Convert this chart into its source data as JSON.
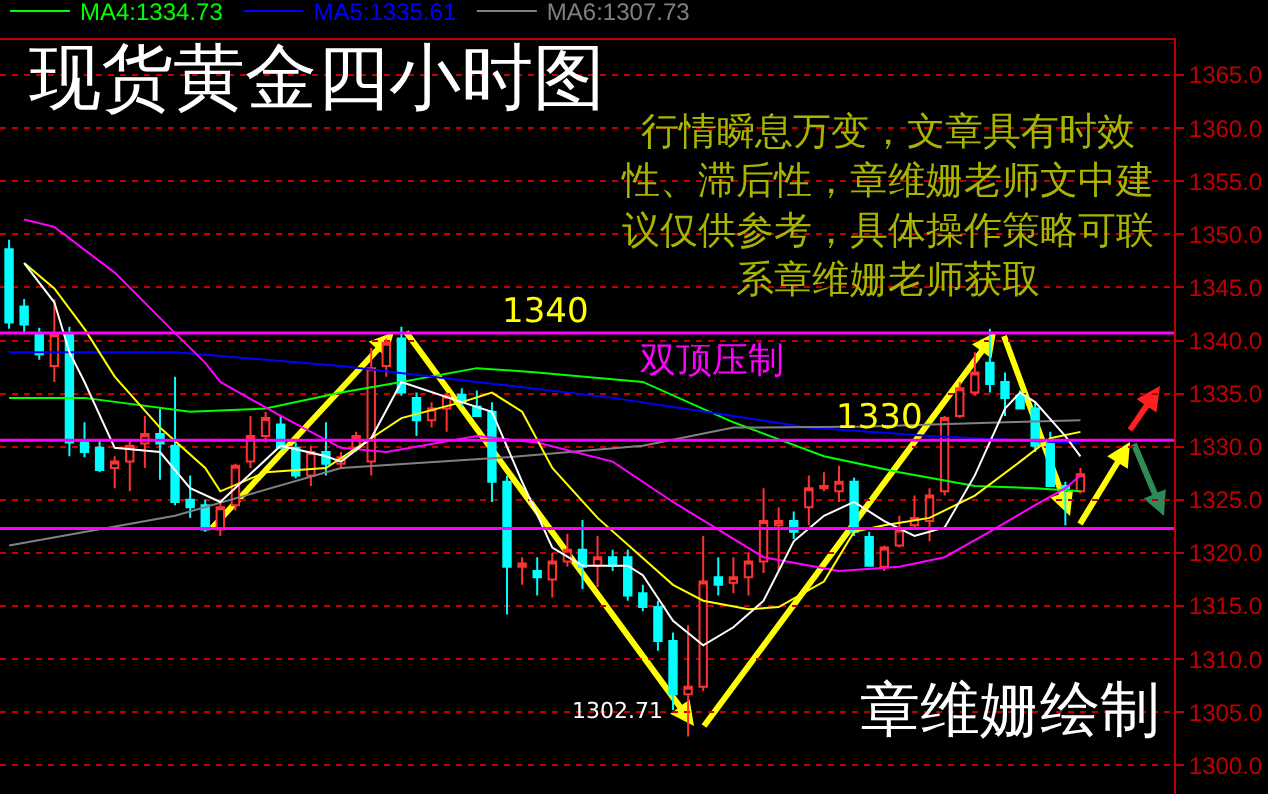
{
  "chart_data": {
    "type": "candlestick",
    "title": "现货黄金四小时图",
    "categories": [
      null,
      null,
      null,
      null,
      null,
      null,
      null,
      null,
      null,
      null,
      null,
      null,
      null,
      null,
      null,
      null,
      null,
      null,
      null,
      null,
      null,
      null,
      null,
      null,
      null,
      null,
      null,
      null,
      null,
      null,
      null,
      null,
      null,
      null,
      null,
      null,
      null,
      null,
      null,
      null,
      null,
      null,
      null,
      null,
      null,
      null,
      null,
      null,
      null,
      null,
      null,
      null,
      null,
      null,
      null,
      null,
      null,
      null,
      null,
      null,
      null,
      null,
      null,
      null,
      null,
      null,
      null,
      null,
      null,
      null,
      null,
      null
    ],
    "ohlc": [
      [
        1348.6,
        1349.5,
        1341.1,
        1341.7
      ],
      [
        1343.2,
        1343.9,
        1340.6,
        1341.5
      ],
      [
        1340.6,
        1341.2,
        1338.2,
        1338.7
      ],
      [
        1337.6,
        1343.9,
        1336.1,
        1340.6
      ],
      [
        1340.7,
        1341.3,
        1329.1,
        1330.4
      ],
      [
        1330.4,
        1332.3,
        1329.0,
        1329.5
      ],
      [
        1329.9,
        1330.6,
        1327.6,
        1327.8
      ],
      [
        1328.0,
        1329.1,
        1326.1,
        1328.6
      ],
      [
        1328.6,
        1330.6,
        1325.8,
        1330.1
      ],
      [
        1330.3,
        1332.9,
        1328.0,
        1331.2
      ],
      [
        1331.2,
        1333.6,
        1326.9,
        1330.3
      ],
      [
        1330.1,
        1336.6,
        1324.5,
        1324.8
      ],
      [
        1325.0,
        1327.3,
        1323.3,
        1324.3
      ],
      [
        1324.5,
        1325.0,
        1322.0,
        1322.2
      ],
      [
        1322.2,
        1324.8,
        1321.6,
        1324.3
      ],
      [
        1324.5,
        1328.4,
        1324.0,
        1328.2
      ],
      [
        1328.6,
        1332.9,
        1328.0,
        1331.0
      ],
      [
        1331.0,
        1333.3,
        1330.4,
        1332.7
      ],
      [
        1332.1,
        1332.9,
        1329.9,
        1329.9
      ],
      [
        1329.9,
        1330.4,
        1327.0,
        1327.3
      ],
      [
        1327.3,
        1330.1,
        1326.3,
        1329.5
      ],
      [
        1329.5,
        1332.3,
        1327.3,
        1328.4
      ],
      [
        1328.4,
        1329.5,
        1328.0,
        1329.0
      ],
      [
        1329.9,
        1331.4,
        1329.5,
        1331.0
      ],
      [
        1328.6,
        1339.3,
        1327.3,
        1337.4
      ],
      [
        1337.6,
        1340.2,
        1336.6,
        1339.8
      ],
      [
        1340.2,
        1341.3,
        1334.8,
        1335.1
      ],
      [
        1334.6,
        1335.1,
        1331.0,
        1332.5
      ],
      [
        1332.5,
        1334.2,
        1331.8,
        1333.6
      ],
      [
        1333.6,
        1335.1,
        1331.4,
        1334.8
      ],
      [
        1334.9,
        1335.5,
        1333.8,
        1334.2
      ],
      [
        1333.8,
        1335.3,
        1332.9,
        1332.9
      ],
      [
        1333.3,
        1334.2,
        1324.8,
        1326.7
      ],
      [
        1326.7,
        1327.3,
        1314.2,
        1318.7
      ],
      [
        1318.7,
        1319.6,
        1317.0,
        1319.0
      ],
      [
        1318.3,
        1319.6,
        1316.0,
        1317.7
      ],
      [
        1317.5,
        1320.0,
        1315.8,
        1319.2
      ],
      [
        1319.2,
        1321.8,
        1318.7,
        1320.3
      ],
      [
        1320.3,
        1323.1,
        1316.6,
        1318.7
      ],
      [
        1318.8,
        1321.6,
        1316.8,
        1319.6
      ],
      [
        1319.6,
        1320.3,
        1318.3,
        1318.8
      ],
      [
        1319.6,
        1320.3,
        1315.5,
        1316.0
      ],
      [
        1316.2,
        1317.0,
        1314.5,
        1314.9
      ],
      [
        1314.9,
        1315.5,
        1310.8,
        1311.7
      ],
      [
        1311.7,
        1312.5,
        1305.2,
        1306.7
      ],
      [
        1306.7,
        1313.2,
        1302.71,
        1307.4
      ],
      [
        1307.4,
        1321.6,
        1307.0,
        1317.3
      ],
      [
        1317.7,
        1319.6,
        1316.0,
        1317.0
      ],
      [
        1317.2,
        1319.6,
        1316.2,
        1317.7
      ],
      [
        1317.7,
        1320.0,
        1316.0,
        1319.2
      ],
      [
        1319.2,
        1326.1,
        1318.1,
        1323.0
      ],
      [
        1322.6,
        1324.3,
        1318.3,
        1323.0
      ],
      [
        1323.0,
        1323.9,
        1321.3,
        1322.0
      ],
      [
        1324.3,
        1327.3,
        1322.6,
        1326.1
      ],
      [
        1326.1,
        1327.6,
        1325.8,
        1326.3
      ],
      [
        1325.8,
        1328.2,
        1324.8,
        1326.7
      ],
      [
        1326.7,
        1327.1,
        1321.6,
        1322.0
      ],
      [
        1321.5,
        1322.0,
        1318.8,
        1318.8
      ],
      [
        1318.7,
        1320.7,
        1318.3,
        1320.5
      ],
      [
        1320.7,
        1323.5,
        1320.5,
        1322.2
      ],
      [
        1322.6,
        1325.4,
        1322.4,
        1323.3
      ],
      [
        1323.0,
        1326.1,
        1321.1,
        1325.4
      ],
      [
        1325.8,
        1332.9,
        1325.4,
        1332.7
      ],
      [
        1332.9,
        1336.1,
        1332.7,
        1335.5
      ],
      [
        1335.1,
        1338.9,
        1334.8,
        1337.0
      ],
      [
        1337.9,
        1341.1,
        1335.1,
        1335.9
      ],
      [
        1336.1,
        1337.0,
        1332.9,
        1334.6
      ],
      [
        1334.8,
        1335.3,
        1333.6,
        1333.6
      ],
      [
        1333.6,
        1334.2,
        1329.5,
        1330.1
      ],
      [
        1330.4,
        1331.4,
        1326.3,
        1326.3
      ],
      [
        1326.3,
        1326.7,
        1322.6,
        1326.1
      ],
      [
        1325.8,
        1328.0,
        1325.6,
        1327.4
      ]
    ],
    "series": [
      {
        "type": "line",
        "color": "#00ff00",
        "name": "MA4:1334.73",
        "values": [
          1334.6,
          null,
          null,
          null,
          null,
          1334.6,
          null,
          null,
          null,
          null,
          null,
          null,
          1333.3,
          null,
          null,
          null,
          null,
          1333.6,
          null,
          null,
          null,
          null,
          1335.1,
          null,
          null,
          null,
          1336.1,
          null,
          null,
          null,
          null,
          1337.4,
          null,
          null,
          null,
          1337.0,
          null,
          null,
          null,
          null,
          null,
          null,
          1336.1,
          null,
          null,
          null,
          null,
          null,
          1332.3,
          null,
          null,
          null,
          null,
          null,
          1329.1,
          null,
          null,
          null,
          null,
          1327.6,
          null,
          null,
          null,
          null,
          1326.3,
          null,
          null,
          null,
          1326.1,
          null,
          null,
          1325.8
        ]
      },
      {
        "type": "line",
        "color": "#0000ff",
        "name": "MA5:1335.61",
        "values": [
          1338.9,
          null,
          null,
          null,
          null,
          null,
          null,
          null,
          null,
          null,
          null,
          1338.9,
          null,
          null,
          null,
          null,
          null,
          null,
          null,
          null,
          null,
          null,
          1337.6,
          null,
          null,
          null,
          null,
          null,
          null,
          null,
          null,
          1336.1,
          null,
          null,
          null,
          null,
          null,
          null,
          null,
          null,
          1334.6,
          null,
          null,
          null,
          null,
          null,
          null,
          null,
          1332.9,
          null,
          null,
          null,
          null,
          1331.8,
          null,
          null,
          null,
          null,
          null,
          null,
          null,
          1331.0,
          null,
          null,
          null,
          null,
          null,
          null,
          null,
          null,
          1330.4,
          1330.3
        ]
      },
      {
        "type": "line",
        "color": "#808080",
        "name": "MA6:1307.73",
        "values": [
          1320.7,
          null,
          null,
          null,
          null,
          null,
          null,
          null,
          null,
          null,
          null,
          1323.5,
          null,
          null,
          null,
          null,
          null,
          null,
          null,
          null,
          null,
          null,
          1328.0,
          null,
          null,
          null,
          null,
          null,
          null,
          null,
          null,
          null,
          null,
          1329.0,
          null,
          null,
          null,
          null,
          null,
          null,
          null,
          null,
          1330.1,
          null,
          null,
          null,
          null,
          null,
          1331.8,
          null,
          null,
          null,
          null,
          null,
          null,
          null,
          null,
          1331.9,
          null,
          null,
          null,
          null,
          null,
          null,
          null,
          null,
          1332.3,
          null,
          null,
          null,
          null,
          1332.5
        ]
      },
      {
        "type": "line",
        "color": "#ff00ff",
        "values": [
          null,
          1351.4,
          null,
          1350.7,
          null,
          null,
          null,
          1346.4,
          null,
          null,
          null,
          1340.7,
          null,
          1337.9,
          1336.1,
          null,
          null,
          null,
          1332.9,
          null,
          null,
          null,
          1329.9,
          null,
          null,
          1329.5,
          null,
          null,
          null,
          null,
          null,
          1331.0,
          null,
          null,
          null,
          1330.4,
          null,
          null,
          null,
          null,
          1328.6,
          null,
          null,
          null,
          1324.8,
          null,
          null,
          null,
          null,
          null,
          1319.6,
          null,
          null,
          null,
          null,
          1318.3,
          null,
          null,
          null,
          1318.7,
          null,
          null,
          1319.6,
          null,
          null,
          1322.0,
          null,
          null,
          1324.5,
          null,
          1326.1,
          1327.3
        ]
      },
      {
        "type": "line",
        "color": "#ffff00",
        "values": [
          null,
          1347.3,
          null,
          1344.9,
          null,
          1341.1,
          null,
          1336.6,
          null,
          null,
          1331.8,
          null,
          null,
          1328.0,
          1325.8,
          null,
          null,
          1327.6,
          null,
          null,
          null,
          1328.0,
          null,
          null,
          1330.8,
          null,
          1332.7,
          null,
          null,
          null,
          1334.2,
          null,
          1335.1,
          null,
          1333.3,
          null,
          1328.0,
          null,
          null,
          1323.3,
          null,
          null,
          null,
          null,
          1317.0,
          null,
          1315.5,
          null,
          null,
          1314.7,
          null,
          1314.9,
          null,
          null,
          1317.3,
          null,
          1322.0,
          null,
          1322.6,
          null,
          null,
          1323.3,
          null,
          null,
          1325.4,
          null,
          null,
          1328.6,
          null,
          1330.8,
          null,
          1331.4
        ]
      },
      {
        "type": "line",
        "color": "#ffffff",
        "values": [
          null,
          1347.3,
          null,
          1343.6,
          1338.9,
          1336.1,
          null,
          1329.9,
          null,
          null,
          1329.5,
          null,
          1326.1,
          null,
          1324.8,
          null,
          null,
          null,
          1330.1,
          null,
          null,
          1329.1,
          1328.6,
          null,
          1330.8,
          null,
          1336.1,
          null,
          null,
          null,
          1334.2,
          null,
          1333.3,
          null,
          1326.7,
          null,
          1320.5,
          null,
          1318.8,
          null,
          null,
          1318.8,
          1317.9,
          null,
          1313.6,
          null,
          1311.3,
          null,
          1313.0,
          null,
          1315.5,
          null,
          1321.1,
          null,
          1323.5,
          null,
          1324.8,
          null,
          1323.0,
          null,
          1321.6,
          null,
          1322.4,
          null,
          1327.3,
          null,
          1333.6,
          1335.1,
          1334.2,
          null,
          1331.0,
          1329.1
        ]
      }
    ],
    "ylim": [
      1297.3,
      1368.3
    ],
    "yticks": [
      {
        "value": 1300,
        "label": "1300.0"
      },
      {
        "value": 1305,
        "label": "1305.0"
      },
      {
        "value": 1310,
        "label": "1310.0"
      },
      {
        "value": 1315,
        "label": "1315.0"
      },
      {
        "value": 1320,
        "label": "1320.0"
      },
      {
        "value": 1325,
        "label": "1325.0"
      },
      {
        "value": 1330,
        "label": "1330.0"
      },
      {
        "value": 1335,
        "label": "1335.0"
      },
      {
        "value": 1340,
        "label": "1340.0"
      },
      {
        "value": 1345,
        "label": "1345.0"
      },
      {
        "value": 1350,
        "label": "1350.0"
      },
      {
        "value": 1355,
        "label": "1355.0"
      },
      {
        "value": 1360,
        "label": "1360.0"
      },
      {
        "value": 1365,
        "label": "1365.0"
      }
    ],
    "grid": "y",
    "legend": "top left",
    "tick_labels": "y",
    "ref_lines": [
      {
        "axis": "y",
        "value": 1322.3,
        "color": "#ff00ff"
      },
      {
        "axis": "y",
        "value": 1330.6,
        "color": "#ff00ff"
      },
      {
        "axis": "y",
        "value": 1340.7,
        "color": "#ff00ff"
      }
    ],
    "annotations": [
      "行情瞬息万变，文章具有时效性、滞后性，章维姗老师文中建议仅供参考，具体操作策略可联系章维姗老师获取",
      "双顶压制",
      "1302.71",
      "章维姗绘制",
      "1340",
      "1330"
    ]
  }
}
